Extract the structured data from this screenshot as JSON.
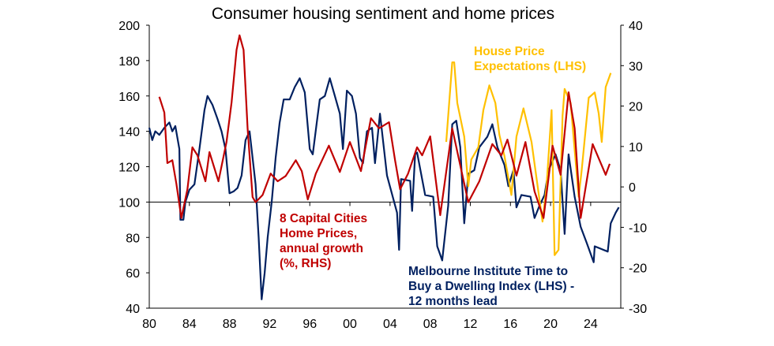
{
  "chart_data": {
    "type": "line",
    "title": "Consumer housing sentiment and home prices",
    "x_axis": {
      "range": [
        1980,
        2027
      ],
      "ticks": [
        1980,
        1984,
        1988,
        1992,
        1996,
        2000,
        2004,
        2008,
        2012,
        2016,
        2020,
        2024
      ],
      "tick_labels": [
        "80",
        "84",
        "88",
        "92",
        "96",
        "00",
        "04",
        "08",
        "12",
        "16",
        "20",
        "24"
      ]
    },
    "y_left": {
      "range": [
        40,
        200
      ],
      "ticks": [
        40,
        60,
        80,
        100,
        120,
        140,
        160,
        180,
        200
      ],
      "tick_labels": [
        "40",
        "60",
        "80",
        "100",
        "120",
        "140",
        "160",
        "180",
        "200"
      ]
    },
    "y_right": {
      "range": [
        -30,
        40
      ],
      "ticks": [
        -30,
        -20,
        -10,
        0,
        10,
        20,
        30,
        40
      ],
      "tick_labels": [
        "-30",
        "-20",
        "-10",
        "0",
        "10",
        "20",
        "30",
        "40"
      ]
    },
    "reference_line": {
      "axis": "left",
      "value": 100
    },
    "grid": false,
    "series": [
      {
        "name": "Melbourne Institute Time to Buy a Dwelling Index (LHS) - 12 months lead",
        "axis": "left",
        "color": "#002060",
        "x": [
          1980,
          1980.3,
          1980.6,
          1981,
          1981.5,
          1982,
          1982.3,
          1982.6,
          1983,
          1983.1,
          1983.4,
          1983.6,
          1984,
          1984.5,
          1985,
          1985.5,
          1985.8,
          1986.3,
          1986.8,
          1987.2,
          1987.6,
          1988,
          1988.4,
          1988.8,
          1989.2,
          1989.6,
          1990,
          1990.3,
          1990.6,
          1990.9,
          1991.2,
          1991.5,
          1991.8,
          1992.2,
          1992.6,
          1993,
          1993.4,
          1994,
          1994.5,
          1995,
          1995.5,
          1996,
          1996.3,
          1996.7,
          1997,
          1997.5,
          1998,
          1998.5,
          1999,
          1999.3,
          1999.7,
          2000.2,
          2000.6,
          2001,
          2001.3,
          2001.7,
          2002.2,
          2002.5,
          2003,
          2003.7,
          2004.7,
          2004.9,
          2005.1,
          2006,
          2006.2,
          2006.5,
          2006.7,
          2007.5,
          2008.3,
          2008.7,
          2009.2,
          2009.8,
          2010.2,
          2010.6,
          2011,
          2011.4,
          2011.8,
          2012.4,
          2012.9,
          2013.7,
          2014.2,
          2014.7,
          2015.4,
          2015.8,
          2016.3,
          2016.6,
          2017.1,
          2018,
          2018.4,
          2018.9,
          2019.4,
          2019.8,
          2020.5,
          2021,
          2021.4,
          2021.8,
          2022.4,
          2023,
          2023.6,
          2024.3,
          2024.4,
          2025.7,
          2026,
          2026.5,
          2026.8
        ],
        "y": [
          142,
          135,
          140,
          138,
          142,
          145,
          140,
          143,
          130,
          90,
          90,
          100,
          107,
          110,
          130,
          152,
          160,
          155,
          147,
          140,
          130,
          105,
          106,
          108,
          115,
          135,
          140,
          125,
          110,
          80,
          45,
          60,
          80,
          100,
          125,
          145,
          158,
          158,
          165,
          170,
          162,
          130,
          127,
          145,
          158,
          160,
          170,
          160,
          150,
          130,
          163,
          160,
          150,
          125,
          122,
          140,
          142,
          122,
          150,
          115,
          94,
          73,
          113,
          112,
          95,
          127,
          128,
          104,
          103,
          75,
          67,
          98,
          144,
          146,
          131,
          88,
          116,
          118,
          131,
          137,
          144,
          131,
          121,
          109,
          118,
          97,
          104,
          103,
          91,
          98,
          104,
          118,
          127,
          118,
          82,
          127,
          103,
          86,
          77,
          66,
          75,
          72,
          88,
          94,
          97
        ]
      },
      {
        "name": "8 Capital Cities Home Prices, annual growth (%, RHS)",
        "axis": "right",
        "color": "#C00000",
        "x": [
          1981,
          1981.5,
          1981.8,
          1982.3,
          1982.7,
          1983.2,
          1983.8,
          1984.3,
          1984.8,
          1985.6,
          1986,
          1986.9,
          1987.7,
          1988.2,
          1988.7,
          1989,
          1989.4,
          1989.8,
          1990.3,
          1990.6,
          1991.3,
          1992.1,
          1992.8,
          1993.6,
          1994.6,
          1995.2,
          1995.8,
          1996.6,
          1997.9,
          1999,
          2000,
          2001.1,
          2002.1,
          2002.9,
          2003.9,
          2004.5,
          2005,
          2005.8,
          2006.7,
          2007.2,
          2008,
          2009,
          2010.2,
          2011.8,
          2012.9,
          2014.2,
          2015.1,
          2015.7,
          2016.6,
          2017.5,
          2018.4,
          2019.3,
          2020.2,
          2021,
          2021.8,
          2022.4,
          2023,
          2024.2,
          2025.5,
          2025.9
        ],
        "y": [
          22.3,
          18.4,
          5.9,
          6.6,
          0.8,
          -7.7,
          -0.6,
          9.8,
          7.8,
          1.4,
          8.6,
          1.4,
          11.1,
          20.9,
          33.9,
          37.5,
          33.9,
          14.5,
          -2.5,
          -3.8,
          -2,
          3.3,
          1.4,
          2.7,
          6.6,
          3.9,
          -3.1,
          3.3,
          10.2,
          3.7,
          11.1,
          3.9,
          17,
          14.5,
          16,
          6.6,
          -0.6,
          3.3,
          9.8,
          7.8,
          12.5,
          -7,
          14.5,
          -3.8,
          1.4,
          10.6,
          7.8,
          11.7,
          2.8,
          11.1,
          -1.1,
          -7.7,
          10.2,
          3,
          23.4,
          14.5,
          -7.7,
          10.6,
          3,
          5.7
        ]
      },
      {
        "name": "House Price Expectations (LHS)",
        "axis": "left",
        "color": "#FFC000",
        "x": [
          2009.6,
          2010.2,
          2010.4,
          2010.7,
          2011.4,
          2011.8,
          2012.1,
          2012.8,
          2013.3,
          2013.9,
          2014.5,
          2014.9,
          2015.4,
          2016.1,
          2016.6,
          2017.3,
          2018.1,
          2019.2,
          2019.6,
          2020.1,
          2020.4,
          2020.8,
          2021.2,
          2021.4,
          2022,
          2022.8,
          2023.1,
          2023.8,
          2024.4,
          2024.8,
          2025.1,
          2025.5,
          2026
        ],
        "y": [
          134,
          179,
          179,
          156,
          137,
          109,
          124,
          131,
          152,
          166,
          156,
          138,
          126,
          104,
          137,
          153,
          134,
          89,
          109,
          152,
          70,
          73,
          149,
          164,
          156,
          103,
          118,
          159,
          162,
          150,
          134,
          165,
          173
        ]
      }
    ],
    "annotations": {
      "red": [
        "8 Capital Cities",
        "Home Prices,",
        "annual growth",
        "(%, RHS)"
      ],
      "orange": [
        "House Price",
        "Expectations (LHS)"
      ],
      "navy": [
        "Melbourne Institute Time to",
        "Buy a Dwelling Index (LHS) -",
        "12 months lead"
      ]
    }
  }
}
